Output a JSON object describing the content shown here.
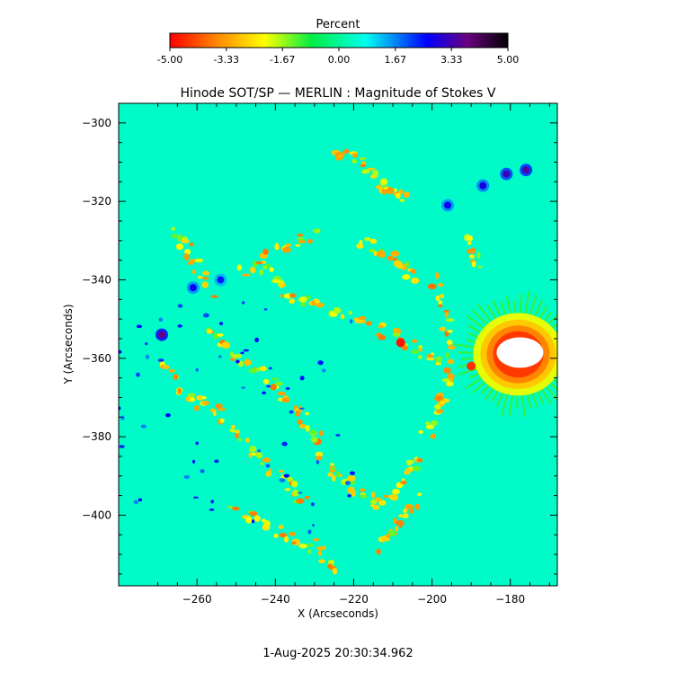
{
  "chart_data": {
    "type": "heatmap",
    "title": "Hinode SOT/SP — MERLIN : Magnitude of Stokes V",
    "xlabel": "X (Arcseconds)",
    "ylabel": "Y (Arcseconds)",
    "xlim": [
      -280,
      -168
    ],
    "ylim": [
      -418,
      -295
    ],
    "x_ticks": [
      -260,
      -240,
      -220,
      -200,
      -180
    ],
    "y_ticks": [
      -300,
      -320,
      -340,
      -360,
      -380,
      -400
    ],
    "colorbar": {
      "label": "Percent",
      "range": [
        -5.0,
        5.0
      ],
      "tick_values": [
        -5.0,
        -3.33,
        -1.67,
        0.0,
        1.67,
        3.33,
        5.0
      ],
      "tick_labels": [
        "-5.00",
        "-3.33",
        "-1.67",
        "0.00",
        "1.67",
        "3.33",
        "5.00"
      ],
      "colors": [
        "#ff0000",
        "#ff8800",
        "#ffff00",
        "#00ee44",
        "#00ffee",
        "#0000ff",
        "#6a0080",
        "#000000"
      ]
    },
    "background_value": 0.4,
    "saturated_color": "#ffffff",
    "features": {
      "positive_spots": [
        {
          "x": -269,
          "y": -354,
          "value": 3.5
        },
        {
          "x": -261,
          "y": -342,
          "value": 2.3
        },
        {
          "x": -254,
          "y": -340,
          "value": 2.0
        },
        {
          "x": -196,
          "y": -321,
          "value": 2.3
        },
        {
          "x": -187,
          "y": -316,
          "value": 2.5
        },
        {
          "x": -181,
          "y": -313,
          "value": 3.0
        },
        {
          "x": -176,
          "y": -312,
          "value": 3.2
        }
      ],
      "negative_sunspot": {
        "x": -178,
        "y": -359,
        "value": -5.0
      }
    },
    "annotation": "1-Aug-2025 20:30:34.962"
  }
}
